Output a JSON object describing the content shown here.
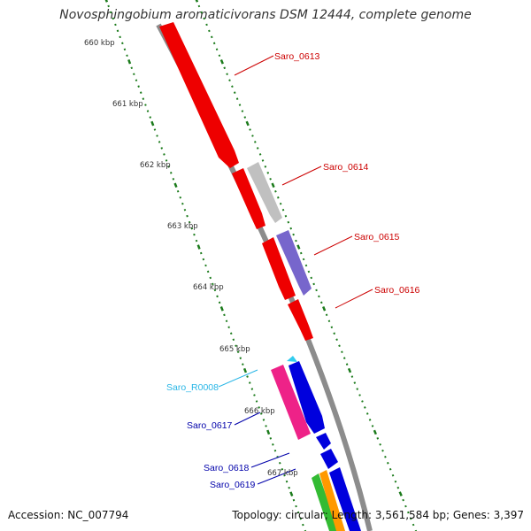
{
  "title": "Novosphingobium aromaticivorans DSM 12444, complete genome",
  "footer": {
    "accession": "Accession: NC_007794",
    "summary": "Topology: circular; Length: 3,561,584 bp; Genes: 3,397"
  },
  "ticks": [
    "660 kbp",
    "661 kbp",
    "662 kbp",
    "663 kbp",
    "664 kbp",
    "665 kbp",
    "666 kbp",
    "667 kbp"
  ],
  "genes": [
    {
      "name": "Saro_0613",
      "color": "#cc0000"
    },
    {
      "name": "Saro_0614",
      "color": "#cc0000"
    },
    {
      "name": "Saro_0615",
      "color": "#cc0000"
    },
    {
      "name": "Saro_0616",
      "color": "#cc0000"
    },
    {
      "name": "Saro_R0008",
      "color": "#29b6e6"
    },
    {
      "name": "Saro_0617",
      "color": "#0000aa"
    },
    {
      "name": "Saro_0618",
      "color": "#0000aa"
    },
    {
      "name": "Saro_0619",
      "color": "#0000aa"
    }
  ],
  "colors": {
    "backbone": "#8c8c8c",
    "tick_marks": "#1a7a1a",
    "red_gene": "#ee0000",
    "grey_gene": "#c0c0c0",
    "purple_gene": "#7766cc",
    "pink_gene": "#ee2288",
    "blue_gene": "#0000dd",
    "green_gene": "#33bb33",
    "orange_gene": "#ff9900",
    "cyan_gene": "#33ccee"
  }
}
